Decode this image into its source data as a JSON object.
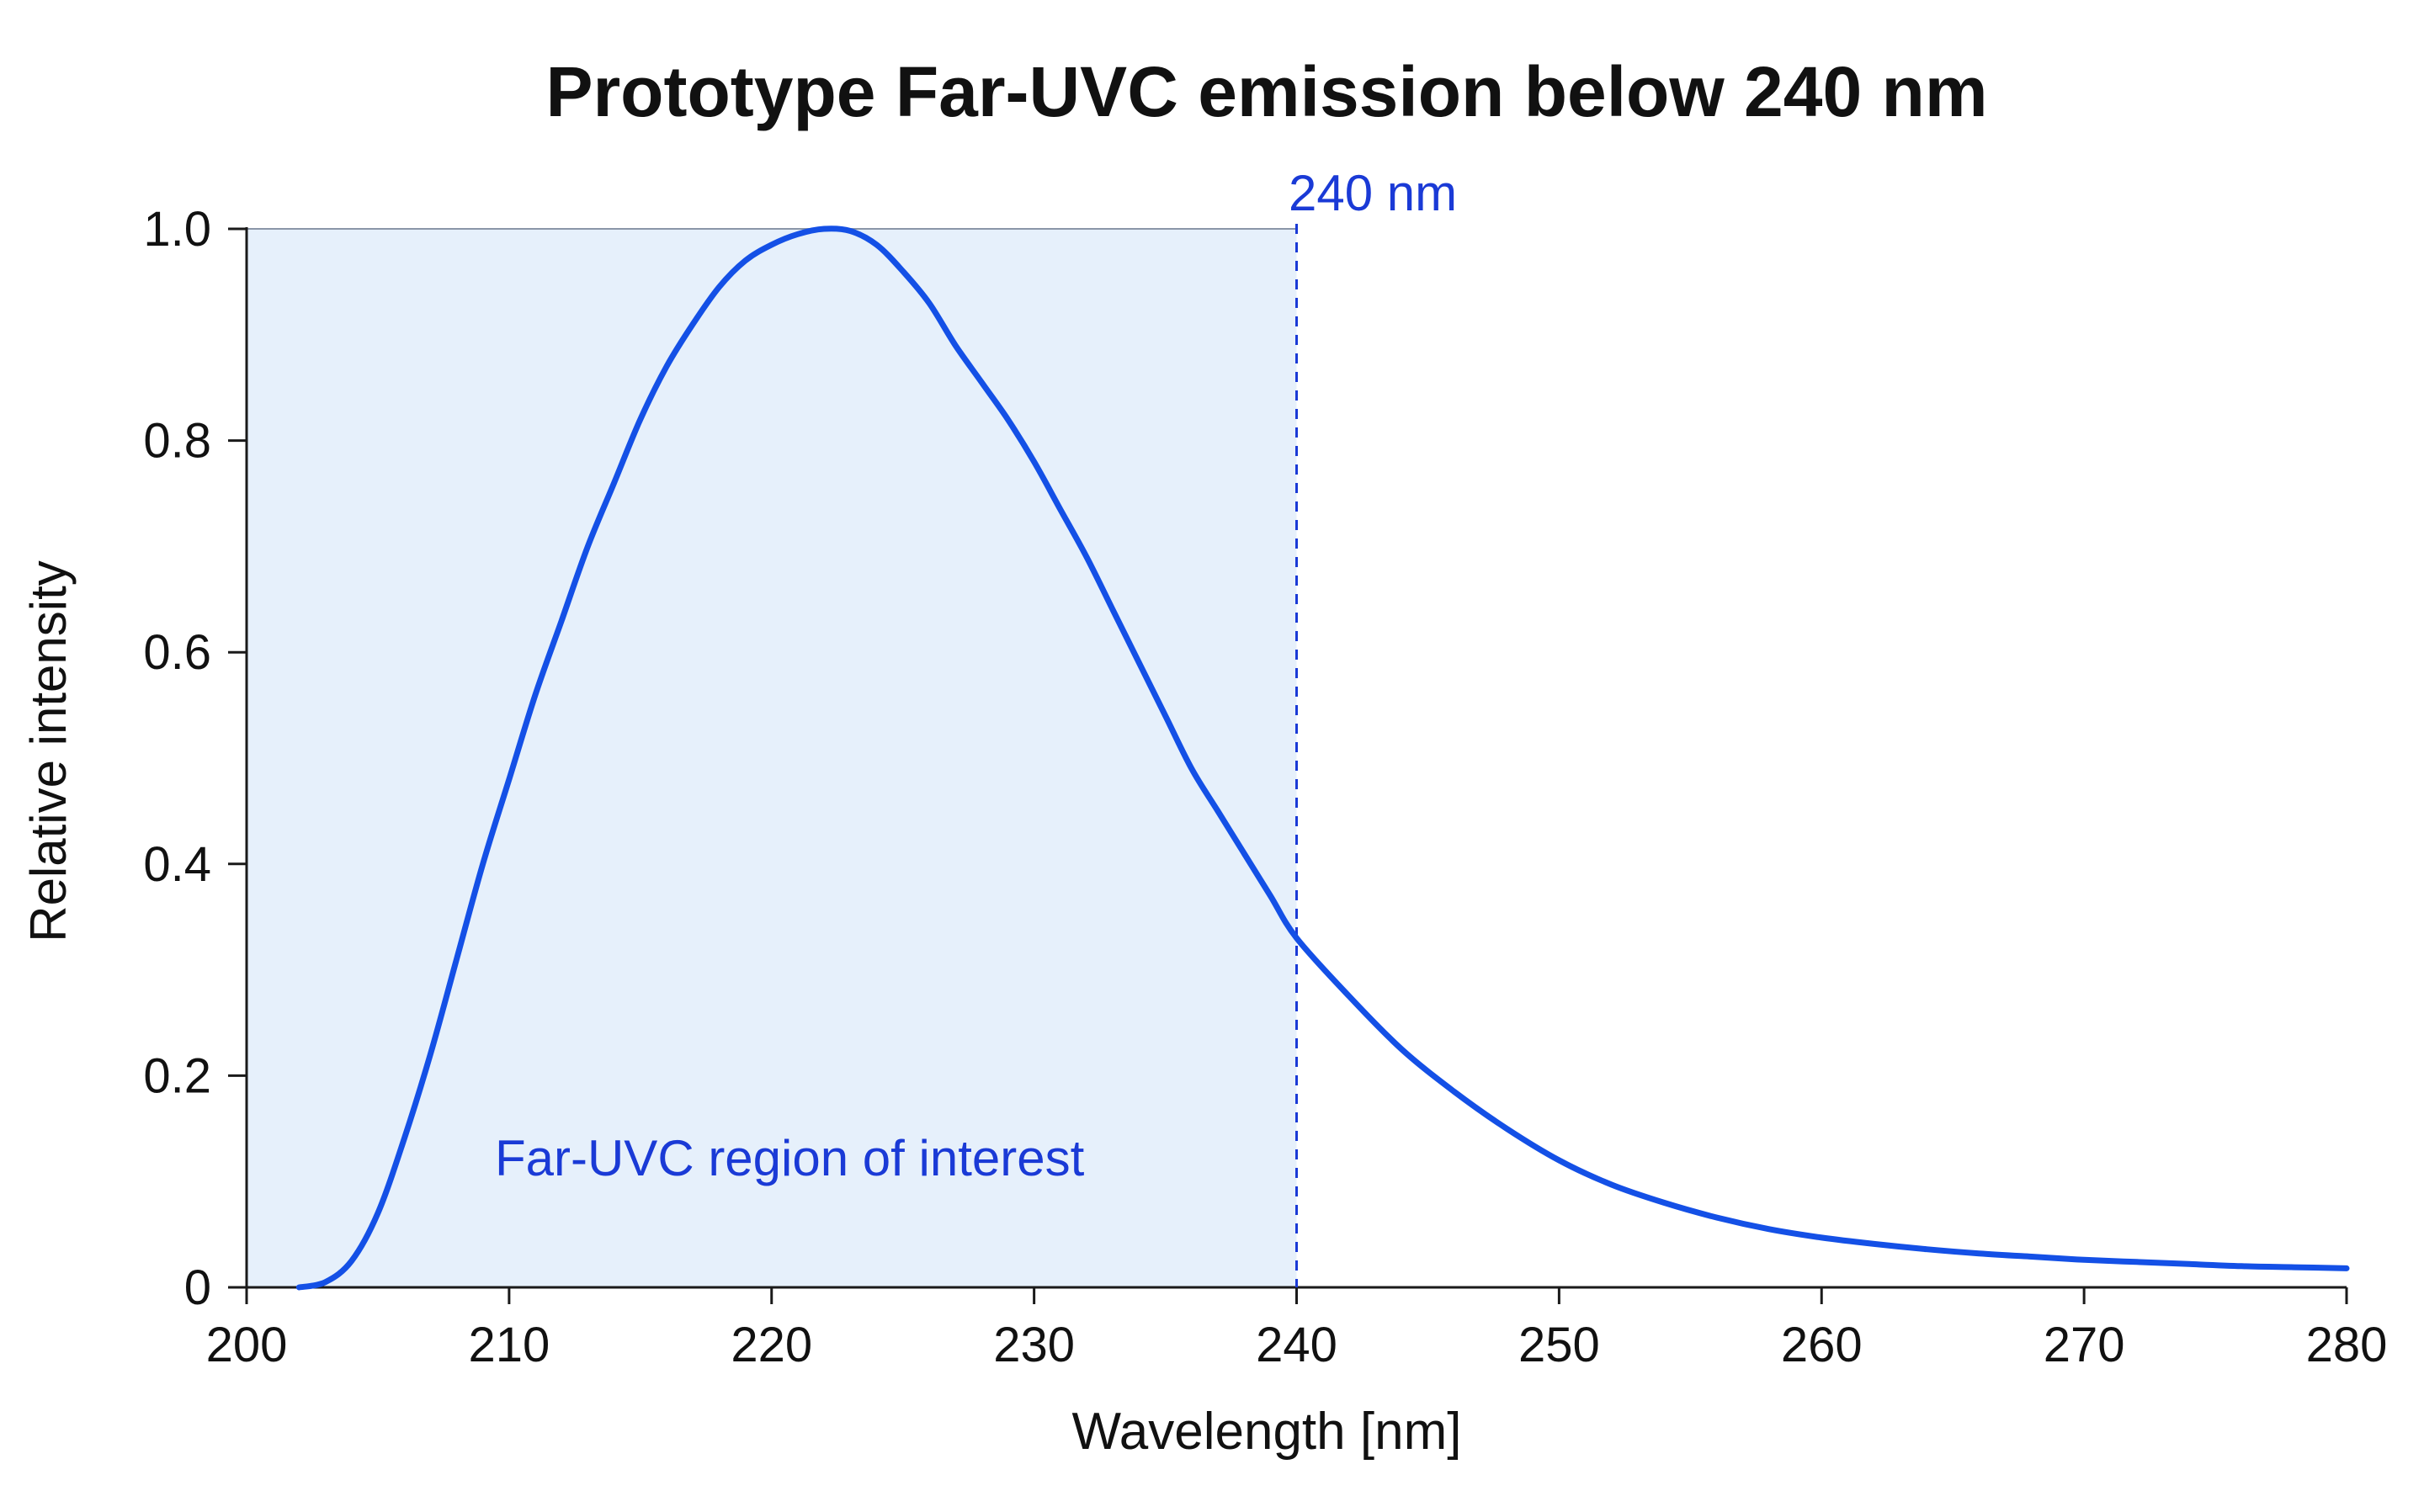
{
  "chart_data": {
    "type": "line",
    "title": "Prototype Far-UVC emission below 240 nm",
    "xlabel": "Wavelength [nm]",
    "ylabel": "Relative intensity",
    "xlim": [
      200,
      280
    ],
    "ylim": [
      0,
      1.0
    ],
    "x_ticks": [
      200,
      210,
      220,
      230,
      240,
      250,
      260,
      270,
      280
    ],
    "y_ticks": [
      0,
      0.2,
      0.4,
      0.6,
      0.8,
      1.0
    ],
    "x_tick_labels": [
      "200",
      "210",
      "220",
      "230",
      "240",
      "250",
      "260",
      "270",
      "280"
    ],
    "y_tick_labels": [
      "0",
      "0.2",
      "0.4",
      "0.6",
      "0.8",
      "1.0"
    ],
    "grid": false,
    "series": [
      {
        "x": [
          202,
          203,
          204,
          205,
          206,
          207,
          208,
          209,
          210,
          211,
          212,
          213,
          214,
          215,
          216,
          217,
          218,
          219,
          220,
          221,
          222,
          223,
          224,
          225,
          226,
          227,
          228,
          229,
          230,
          231,
          232,
          233,
          234,
          235,
          236,
          237,
          238,
          239,
          240,
          242,
          244,
          246,
          248,
          250,
          252,
          254,
          256,
          258,
          260,
          262,
          264,
          266,
          268,
          270,
          272,
          274,
          276,
          278,
          280
        ],
        "y": [
          0.0,
          0.005,
          0.025,
          0.07,
          0.14,
          0.22,
          0.31,
          0.4,
          0.48,
          0.56,
          0.63,
          0.7,
          0.76,
          0.82,
          0.87,
          0.91,
          0.945,
          0.97,
          0.985,
          0.995,
          1.0,
          0.998,
          0.985,
          0.96,
          0.93,
          0.89,
          0.855,
          0.82,
          0.78,
          0.735,
          0.69,
          0.64,
          0.59,
          0.54,
          0.49,
          0.45,
          0.41,
          0.37,
          0.33,
          0.275,
          0.225,
          0.185,
          0.15,
          0.12,
          0.097,
          0.08,
          0.066,
          0.055,
          0.047,
          0.041,
          0.036,
          0.032,
          0.029,
          0.026,
          0.024,
          0.022,
          0.02,
          0.019,
          0.018
        ]
      }
    ],
    "shaded_region": {
      "x": [
        200,
        240
      ],
      "label": "Far-UVC region of interest"
    },
    "reference_line": {
      "x": 240,
      "label": "240 nm"
    },
    "colors": {
      "line": "#1450e6",
      "shade": "#e6f0fb",
      "annotation": "#1a3ad6",
      "axis": "#1a1a1a",
      "text": "#111111"
    }
  }
}
